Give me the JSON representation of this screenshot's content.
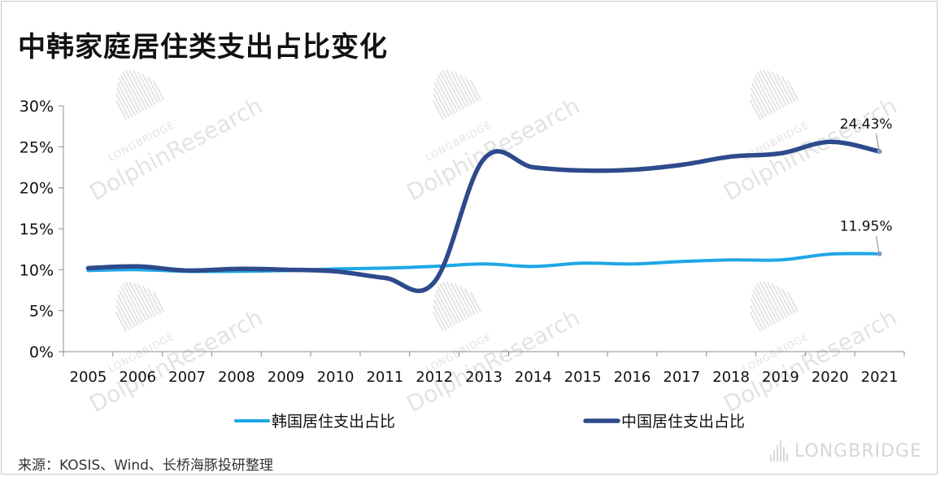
{
  "title": "中韩家庭居住类支出占比变化",
  "source": "来源：KOSIS、Wind、长桥海豚投研整理",
  "watermark": {
    "brand": "LONGBRIDGE",
    "name": "DolphinResearch"
  },
  "colors": {
    "korea": "#1ea7e6",
    "china": "#2d4a8c",
    "axis": "#8c8c8c",
    "text": "#111111"
  },
  "chart_data": {
    "type": "line",
    "title": "中韩家庭居住类支出占比变化",
    "x": [
      "2005",
      "2006",
      "2007",
      "2008",
      "2009",
      "2010",
      "2011",
      "2012",
      "2013",
      "2014",
      "2015",
      "2016",
      "2017",
      "2018",
      "2019",
      "2020",
      "2021"
    ],
    "yticks": [
      "0%",
      "5%",
      "10%",
      "15%",
      "20%",
      "25%",
      "30%"
    ],
    "ylim": [
      0,
      30
    ],
    "unit": "%",
    "grid": false,
    "legend_position": "bottom",
    "series": [
      {
        "name": "韩国居住支出占比",
        "color": "#1ea7e6",
        "values": [
          9.9,
          10.0,
          9.8,
          9.8,
          9.9,
          10.1,
          10.2,
          10.4,
          10.7,
          10.4,
          10.8,
          10.7,
          11.0,
          11.2,
          11.2,
          11.9,
          11.95
        ],
        "end_label": "11.95%"
      },
      {
        "name": "中国居住支出占比",
        "color": "#2d4a8c",
        "values": [
          10.2,
          10.4,
          9.9,
          10.1,
          10.0,
          9.8,
          9.0,
          8.5,
          23.5,
          22.5,
          22.1,
          22.2,
          22.8,
          23.8,
          24.2,
          25.6,
          24.43
        ],
        "end_label": "24.43%"
      }
    ]
  }
}
